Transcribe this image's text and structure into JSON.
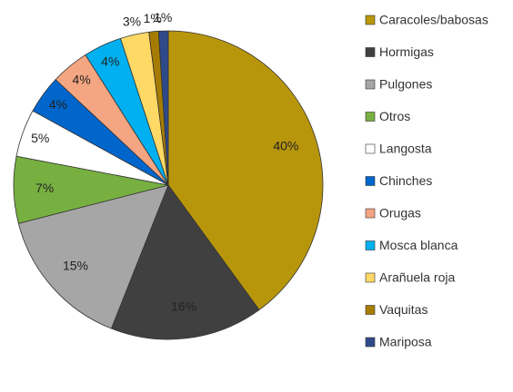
{
  "chart_data": {
    "type": "pie",
    "categories": [
      "Caracoles/babosas",
      "Hormigas",
      "Pulgones",
      "Otros",
      "Langosta",
      "Chinches",
      "Orugas",
      "Mosca blanca",
      "Arañuela roja",
      "Vaquitas",
      "Mariposa"
    ],
    "values": [
      40,
      16,
      15,
      7,
      5,
      4,
      4,
      4,
      3,
      1,
      1
    ],
    "value_labels": [
      "40%",
      "16%",
      "15%",
      "7%",
      "5%",
      "4%",
      "4%",
      "4%",
      "3%",
      "1%",
      "1%"
    ],
    "colors": [
      "#b8960c",
      "#404040",
      "#a6a6a6",
      "#77b041",
      "#ffffff",
      "#0066cc",
      "#f4a582",
      "#00b0f0",
      "#ffd966",
      "#a67c00",
      "#2f4a8a"
    ]
  }
}
